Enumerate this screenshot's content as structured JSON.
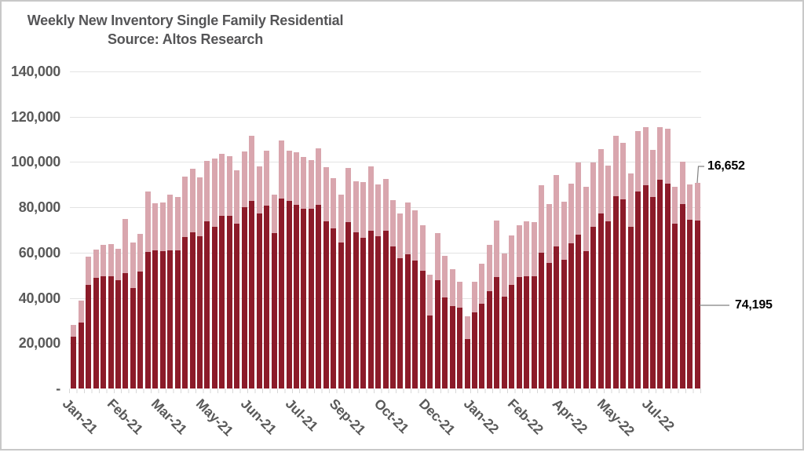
{
  "chart": {
    "title_line1": "Weekly New Inventory Single Family Residential",
    "title_line2": "Source: Altos Research",
    "colors": {
      "dark_bar": "#8c1b29",
      "light_bar": "#d9a6ae",
      "gridline": "#e3e3e3",
      "axis_text": "#595959",
      "leader_line": "#808080",
      "frame_border": "#c8c8c8"
    }
  },
  "chart_data": {
    "type": "bar",
    "stacked": true,
    "title": "Weekly New Inventory Single Family Residential",
    "subtitle": "Source: Altos Research",
    "ylim": [
      0,
      140000
    ],
    "grid": "horizontal",
    "y_tick_labels": [
      "140,000",
      "120,000",
      "100,000",
      "80,000",
      "60,000",
      "40,000",
      "20,000",
      "-"
    ],
    "x_tick_labels": [
      "Jan-21",
      "Feb-21",
      "Mar-21",
      "May-21",
      "Jun-21",
      "Jul-21",
      "Sep-21",
      "Oct-21",
      "Dec-21",
      "Jan-22",
      "Feb-22",
      "Apr-22",
      "May-22",
      "Jul-22"
    ],
    "x_label_interval": 6,
    "weeks": 85,
    "series": [
      {
        "name": "new-inventory-primary",
        "color": "#8c1b29",
        "values": [
          23000,
          29200,
          45900,
          49000,
          49700,
          49700,
          48000,
          50800,
          44500,
          51700,
          60300,
          61100,
          60600,
          61100,
          61100,
          66800,
          68900,
          67200,
          73700,
          71300,
          76200,
          76200,
          72700,
          80000,
          82800,
          77200,
          80700,
          68500,
          83800,
          82700,
          81100,
          79400,
          79200,
          81100,
          73900,
          70800,
          64600,
          73400,
          69000,
          66400,
          69600,
          67300,
          69600,
          62600,
          57400,
          59100,
          56500,
          51900,
          32400,
          47700,
          40200,
          36500,
          35800,
          21900,
          33600,
          37400,
          42900,
          49200,
          40600,
          45600,
          49300,
          49400,
          49500,
          60000,
          55300,
          62900,
          56900,
          64100,
          67900,
          60500,
          71300,
          77200,
          73800,
          84900,
          83500,
          71500,
          87000,
          89600,
          84700,
          92100,
          90600,
          72700,
          81400,
          74400,
          74195
        ]
      },
      {
        "name": "new-inventory-secondary",
        "color": "#d9a6ae",
        "values": [
          5000,
          9700,
          12200,
          12200,
          13600,
          13900,
          13800,
          24100,
          20000,
          16600,
          26700,
          20700,
          21500,
          24400,
          23600,
          26800,
          28100,
          26000,
          26800,
          30400,
          27400,
          26400,
          23600,
          24700,
          28800,
          20900,
          24300,
          17100,
          25800,
          22400,
          23300,
          23000,
          21700,
          25000,
          24000,
          22200,
          20900,
          24000,
          22600,
          24900,
          28600,
          22800,
          22800,
          20500,
          19900,
          23200,
          22000,
          20200,
          17800,
          20800,
          18300,
          16100,
          11500,
          10000,
          13500,
          17700,
          20600,
          24900,
          19100,
          21900,
          22800,
          24400,
          24100,
          29900,
          26100,
          31400,
          25700,
          26300,
          31800,
          28400,
          28400,
          28500,
          24700,
          26600,
          24900,
          23300,
          26600,
          25900,
          20500,
          23200,
          24200,
          16200,
          18900,
          15700,
          16652
        ]
      }
    ],
    "last_point_labels": {
      "light": "16,652",
      "dark": "74,195"
    }
  }
}
